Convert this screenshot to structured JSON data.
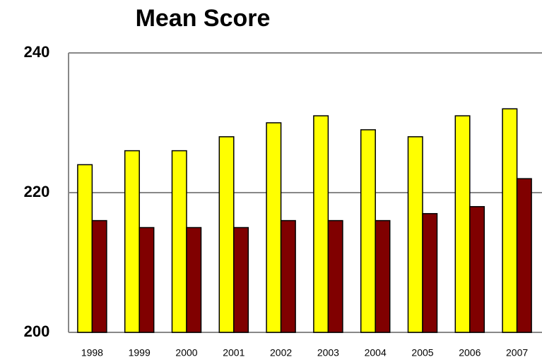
{
  "chart_data": {
    "type": "bar",
    "title": "Mean Score",
    "categories": [
      "1998",
      "1999",
      "2000",
      "2001",
      "2002",
      "2003",
      "2004",
      "2005",
      "2006",
      "2007"
    ],
    "series": [
      {
        "color": "#ffff00",
        "values": [
          224,
          226,
          226,
          228,
          230,
          231,
          229,
          228,
          231,
          232
        ]
      },
      {
        "color": "#800000",
        "values": [
          216,
          215,
          215,
          215,
          216,
          216,
          216,
          217,
          218,
          222
        ]
      }
    ],
    "ylim": [
      200,
      240
    ],
    "yticks": [
      200,
      220,
      240
    ],
    "grid": true
  }
}
